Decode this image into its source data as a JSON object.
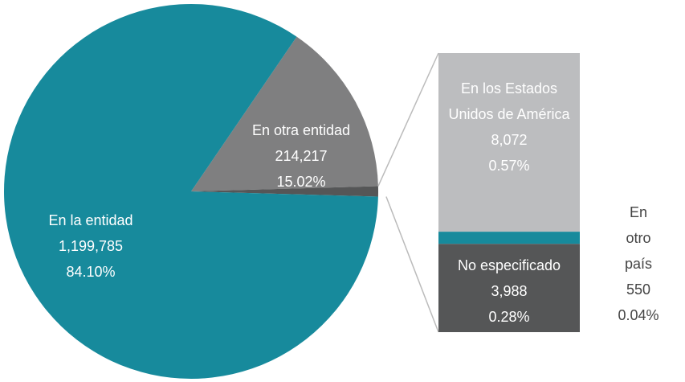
{
  "chart_data": {
    "type": "pie-of-bar",
    "pie": {
      "categories": [
        "En la entidad",
        "En otra entidad"
      ],
      "values": [
        1199785,
        214217
      ],
      "value_labels": [
        "1,199,785",
        "214,217"
      ],
      "percents": [
        84.1,
        15.02
      ],
      "percent_labels": [
        "84.10%",
        "15.02%"
      ],
      "colors": [
        "#178a9c",
        "#7f7f80"
      ]
    },
    "bar": {
      "categories": [
        "En los Estados Unidos de América",
        "En otro país",
        "No especificado"
      ],
      "values": [
        8072,
        550,
        3988
      ],
      "value_labels": [
        "8,072",
        "550",
        "3,988"
      ],
      "percents": [
        0.57,
        0.04,
        0.28
      ],
      "percent_labels": [
        "0.57%",
        "0.04%",
        "0.28%"
      ],
      "colors": [
        "#bcbdbf",
        "#178a9c",
        "#555657"
      ]
    },
    "other_color": "#555657"
  }
}
